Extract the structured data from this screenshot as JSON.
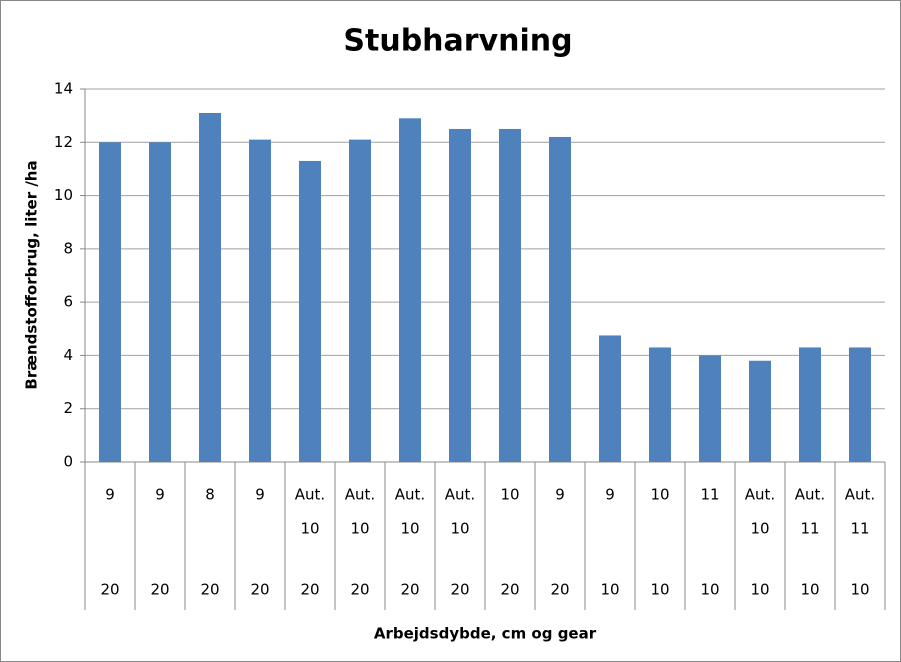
{
  "chart_data": {
    "type": "bar",
    "title": "Stubharvning",
    "ylabel": "Brændstofforbrug, liter /ha",
    "xlabel": "Arbejdsdybde, cm  og gear",
    "categories": [
      [
        "9"
      ],
      [
        "9"
      ],
      [
        "8"
      ],
      [
        "9"
      ],
      [
        "Aut.",
        "10"
      ],
      [
        "Aut.",
        "10"
      ],
      [
        "Aut.",
        "10"
      ],
      [
        "Aut.",
        "10"
      ],
      [
        "10"
      ],
      [
        "9"
      ],
      [
        "9"
      ],
      [
        "10"
      ],
      [
        "11"
      ],
      [
        "Aut.",
        "10"
      ],
      [
        "Aut.",
        "11"
      ],
      [
        "Aut.",
        "11"
      ]
    ],
    "groups": [
      "20",
      "20",
      "20",
      "20",
      "20",
      "20",
      "20",
      "20",
      "20",
      "20",
      "10",
      "10",
      "10",
      "10",
      "10",
      "10"
    ],
    "values": [
      12,
      12,
      13.1,
      12.1,
      11.3,
      12.1,
      12.9,
      12.5,
      12.5,
      12.2,
      4.75,
      4.3,
      4.0,
      3.8,
      4.3,
      4.3
    ],
    "color": "#4f81bd",
    "ylim": [
      0,
      14
    ],
    "yticks": [
      0,
      2,
      4,
      6,
      8,
      10,
      12,
      14
    ],
    "grid": true
  }
}
